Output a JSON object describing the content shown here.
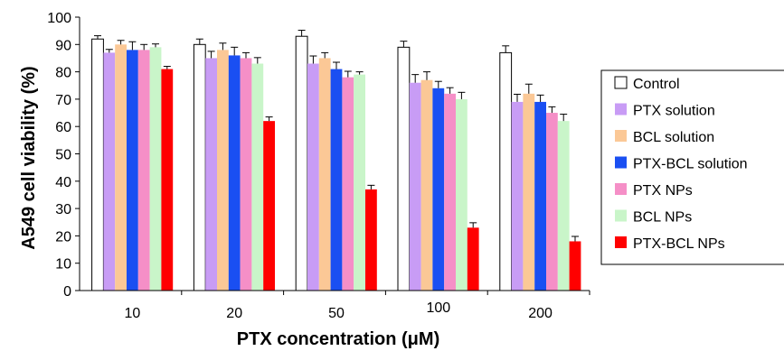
{
  "chart_data": {
    "type": "bar",
    "xlabel": "PTX concentration (μM)",
    "ylabel": "A549 cell viability (%)",
    "ylim": [
      0,
      100
    ],
    "yticks": [
      0,
      10,
      20,
      30,
      40,
      50,
      60,
      70,
      80,
      90,
      100
    ],
    "categories": [
      "10",
      "20",
      "50",
      "100",
      "200"
    ],
    "legend_position": "right",
    "grid": false,
    "error_bars": "positive",
    "series": [
      {
        "name": "Control",
        "color": "#ffffff",
        "values": [
          92,
          90,
          93,
          89,
          87
        ],
        "errors": [
          1.2,
          2.0,
          2.2,
          2.2,
          2.5
        ]
      },
      {
        "name": "PTX solution",
        "color": "#c89cf5",
        "values": [
          87,
          85,
          83,
          76,
          69
        ],
        "errors": [
          1.2,
          2.5,
          2.8,
          3.0,
          2.8
        ]
      },
      {
        "name": "BCL solution",
        "color": "#fbc896",
        "values": [
          90,
          88,
          85,
          77,
          72
        ],
        "errors": [
          1.5,
          2.5,
          2.0,
          3.0,
          3.5
        ]
      },
      {
        "name": "PTX-BCL solution",
        "color": "#1a4ff2",
        "values": [
          88,
          86,
          81,
          74,
          69
        ],
        "errors": [
          3.0,
          3.0,
          2.5,
          2.5,
          2.5
        ]
      },
      {
        "name": "PTX NPs",
        "color": "#f58fc7",
        "values": [
          88,
          85,
          78,
          72,
          65
        ],
        "errors": [
          2.0,
          2.0,
          2.2,
          2.2,
          2.2
        ]
      },
      {
        "name": "BCL NPs",
        "color": "#c9f5c9",
        "values": [
          89,
          83,
          79,
          70,
          62
        ],
        "errors": [
          1.2,
          2.2,
          1.0,
          2.5,
          2.5
        ]
      },
      {
        "name": "PTX-BCL NPs",
        "color": "#ff0000",
        "values": [
          81,
          62,
          37,
          23,
          18
        ],
        "errors": [
          1.0,
          1.5,
          1.5,
          1.8,
          1.8
        ]
      }
    ]
  }
}
